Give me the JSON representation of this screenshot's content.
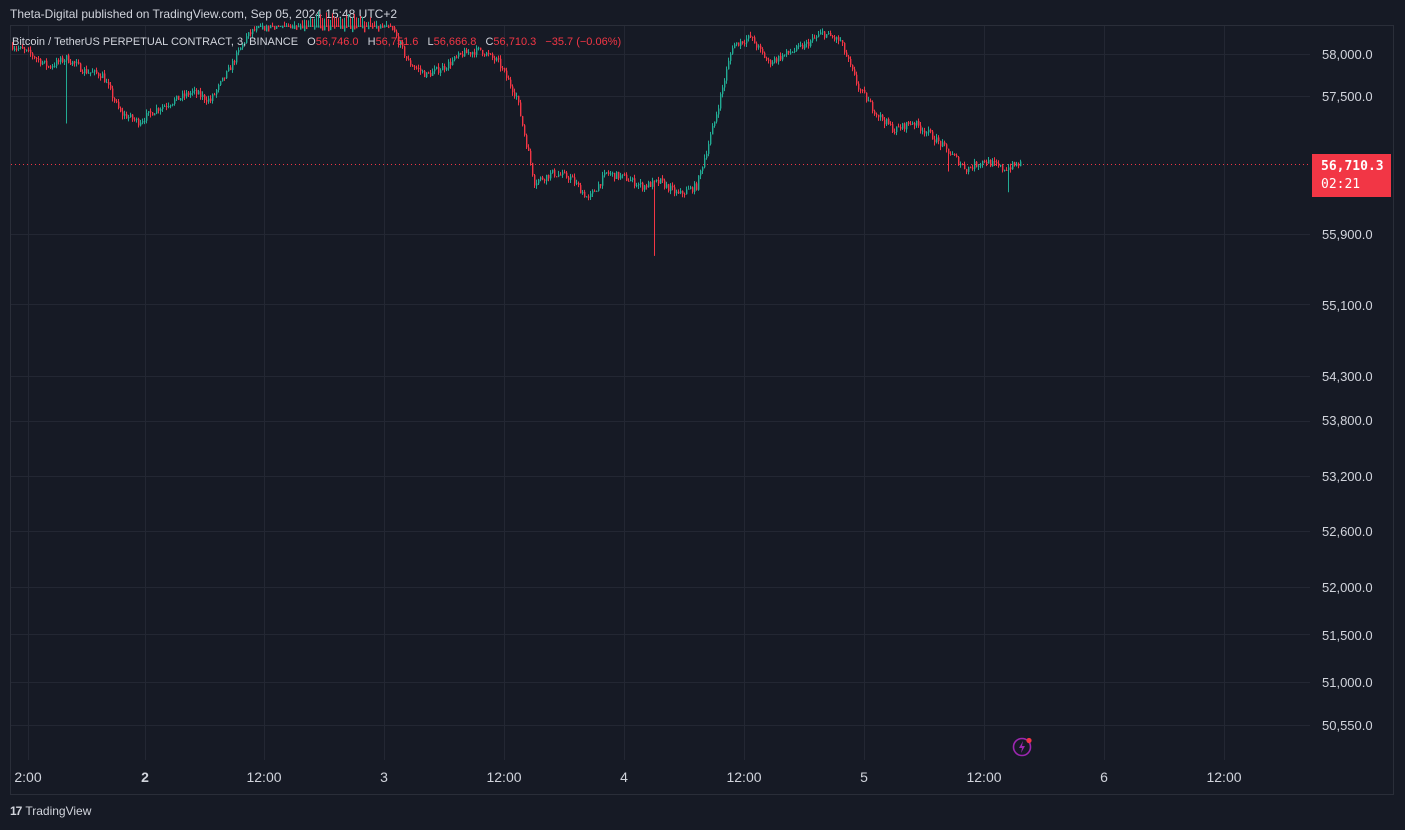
{
  "header": {
    "publish_text": "Theta-Digital published on TradingView.com, Sep 05, 2024 15:48 UTC+2"
  },
  "legend": {
    "symbol": "Bitcoin / TetherUS PERPETUAL CONTRACT, 3, BINANCE",
    "o_label": "O",
    "o_value": "56,746.0",
    "h_label": "H",
    "h_value": "56,751.6",
    "l_label": "L",
    "l_value": "56,666.8",
    "c_label": "C",
    "c_value": "56,710.3",
    "change": "−35.7 (−0.06%)"
  },
  "price_badge": {
    "price": "56,710.3",
    "countdown": "02:21"
  },
  "footer": {
    "brand": "TradingView",
    "logo_text": "17"
  },
  "colors": {
    "background": "#161a25",
    "up": "#22ab94",
    "down": "#f23645",
    "grid": "#232733",
    "text": "#d1d4dc",
    "flash": "#9c27b0"
  },
  "chart_data": {
    "type": "candlestick",
    "timeframe": "3",
    "scale": "log",
    "y_ticks": [
      "58,000.0",
      "57,500.0",
      "56,710.3",
      "55,900.0",
      "55,100.0",
      "54,300.0",
      "53,800.0",
      "53,200.0",
      "52,600.0",
      "52,000.0",
      "51,500.0",
      "51,000.0",
      "50,550.0"
    ],
    "x_ticks": [
      {
        "label": "2:00",
        "bold": false
      },
      {
        "label": "2",
        "bold": true
      },
      {
        "label": "12:00",
        "bold": false
      },
      {
        "label": "3",
        "bold": false
      },
      {
        "label": "12:00",
        "bold": false
      },
      {
        "label": "4",
        "bold": false
      },
      {
        "label": "12:00",
        "bold": false
      },
      {
        "label": "5",
        "bold": false
      },
      {
        "label": "12:00",
        "bold": false
      },
      {
        "label": "6",
        "bold": false
      },
      {
        "label": "12:00",
        "bold": false
      }
    ],
    "last_price": 56710.3,
    "close_path": [
      [
        0,
        58100
      ],
      [
        1,
        58000
      ],
      [
        2,
        57850
      ],
      [
        3,
        57950
      ],
      [
        4,
        57800
      ],
      [
        5,
        57750
      ],
      [
        6,
        57300
      ],
      [
        7,
        57200
      ],
      [
        8,
        57350
      ],
      [
        9,
        57450
      ],
      [
        10,
        57550
      ],
      [
        11,
        57450
      ],
      [
        12,
        57800
      ],
      [
        13,
        58200
      ],
      [
        14,
        58400
      ],
      [
        15,
        58350
      ],
      [
        16,
        58450
      ],
      [
        17,
        58500
      ],
      [
        18,
        58450
      ],
      [
        19,
        58500
      ],
      [
        20,
        58400
      ],
      [
        21,
        58350
      ],
      [
        22,
        57900
      ],
      [
        23,
        57750
      ],
      [
        24,
        57850
      ],
      [
        25,
        58000
      ],
      [
        26,
        58050
      ],
      [
        27,
        57900
      ],
      [
        28,
        57500
      ],
      [
        29,
        56500
      ],
      [
        30,
        56600
      ],
      [
        31,
        56550
      ],
      [
        32,
        56300
      ],
      [
        33,
        56600
      ],
      [
        34,
        56550
      ],
      [
        35,
        56450
      ],
      [
        36,
        56500
      ],
      [
        37,
        56350
      ],
      [
        38,
        56450
      ],
      [
        39,
        57200
      ],
      [
        40,
        58100
      ],
      [
        41,
        58200
      ],
      [
        42,
        57900
      ],
      [
        43,
        58000
      ],
      [
        44,
        58100
      ],
      [
        45,
        58250
      ],
      [
        46,
        58150
      ],
      [
        47,
        57600
      ],
      [
        48,
        57300
      ],
      [
        49,
        57100
      ],
      [
        50,
        57200
      ],
      [
        51,
        57050
      ],
      [
        52,
        56850
      ],
      [
        53,
        56650
      ],
      [
        54,
        56750
      ],
      [
        55,
        56650
      ],
      [
        56,
        56710
      ]
    ]
  }
}
